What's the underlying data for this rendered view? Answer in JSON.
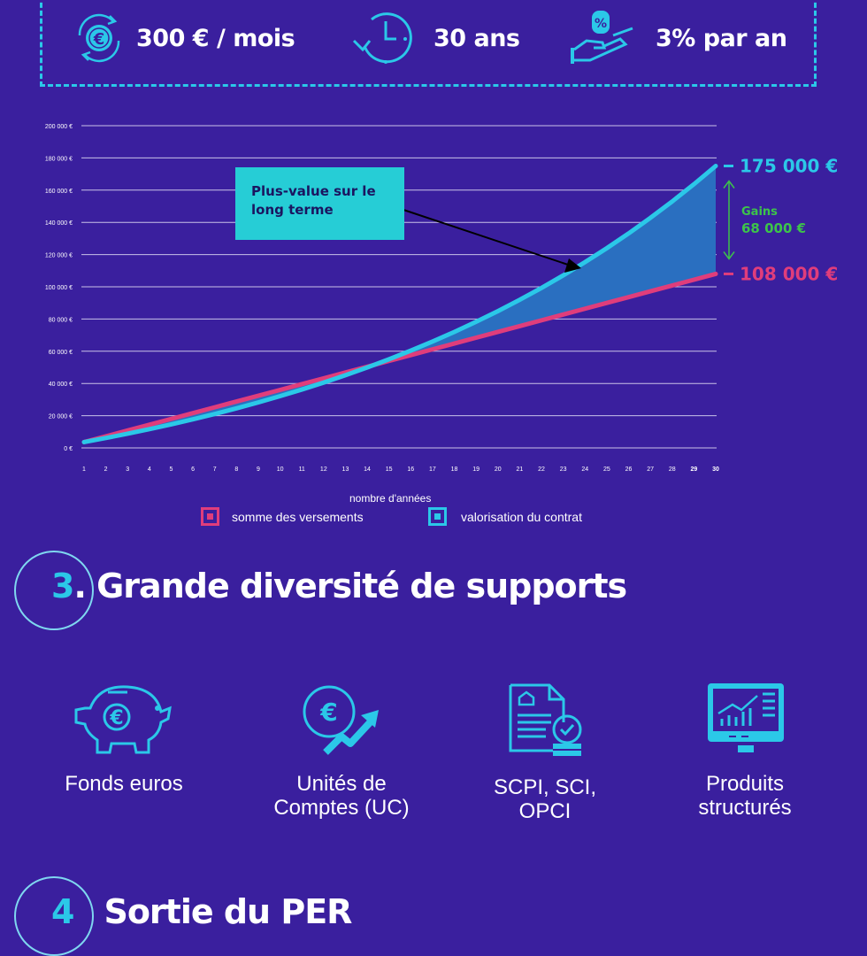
{
  "stats": [
    {
      "icon": "euro-cycle-icon",
      "text": "300 € / mois"
    },
    {
      "icon": "clock-icon",
      "text": "30 ans"
    },
    {
      "icon": "hand-percent-icon",
      "text": "3% par an"
    }
  ],
  "colors": {
    "background": "#3a1f9e",
    "accent_cyan": "#2bc8e8",
    "accent_pink": "#e03d7b",
    "accent_green": "#3dc44a",
    "fill_blue": "#2a6fc0",
    "annotation_bg": "#26cdd6"
  },
  "chart_data": {
    "type": "area",
    "xlabel": "nombre d'années",
    "ylabel": "",
    "x": [
      1,
      2,
      3,
      4,
      5,
      6,
      7,
      8,
      9,
      10,
      11,
      12,
      13,
      14,
      15,
      16,
      17,
      18,
      19,
      20,
      21,
      22,
      23,
      24,
      25,
      26,
      27,
      28,
      29,
      30
    ],
    "ylim": [
      0,
      200000
    ],
    "yticks": [
      "0 €",
      "20 000 €",
      "40 000 €",
      "60 000 €",
      "80 000 €",
      "100 000 €",
      "120 000 €",
      "140 000 €",
      "160 000 €",
      "180 000 €",
      "200 000 €"
    ],
    "series": [
      {
        "name": "somme des versements",
        "start": 3600,
        "end": 108000,
        "color": "#e03d7b"
      },
      {
        "name": "valorisation du contrat",
        "start": 3600,
        "end": 175000,
        "rate": 0.03,
        "color": "#2bc8e8"
      }
    ],
    "end_labels": {
      "top": "175 000 €",
      "bottom": "108 000 €",
      "gain_title": "Gains",
      "gain_value": "68 000 €"
    },
    "annotation": {
      "line1": "Plus-value sur le",
      "line2": "long terme"
    },
    "legend": "bottom"
  },
  "section3": {
    "number": "3",
    "title": ". Grande diversité de supports",
    "supports": [
      {
        "icon": "piggy-bank-euro-icon",
        "line1": "Fonds euros",
        "line2": ""
      },
      {
        "icon": "euro-growth-icon",
        "line1": "Unités de",
        "line2": "Comptes (UC)"
      },
      {
        "icon": "document-coins-icon",
        "line1": "SCPI, SCI,",
        "line2": "OPCI"
      },
      {
        "icon": "monitor-chart-icon",
        "line1": "Produits",
        "line2": "structurés"
      }
    ]
  },
  "section4": {
    "number": "4",
    "title": "Sortie du PER"
  }
}
